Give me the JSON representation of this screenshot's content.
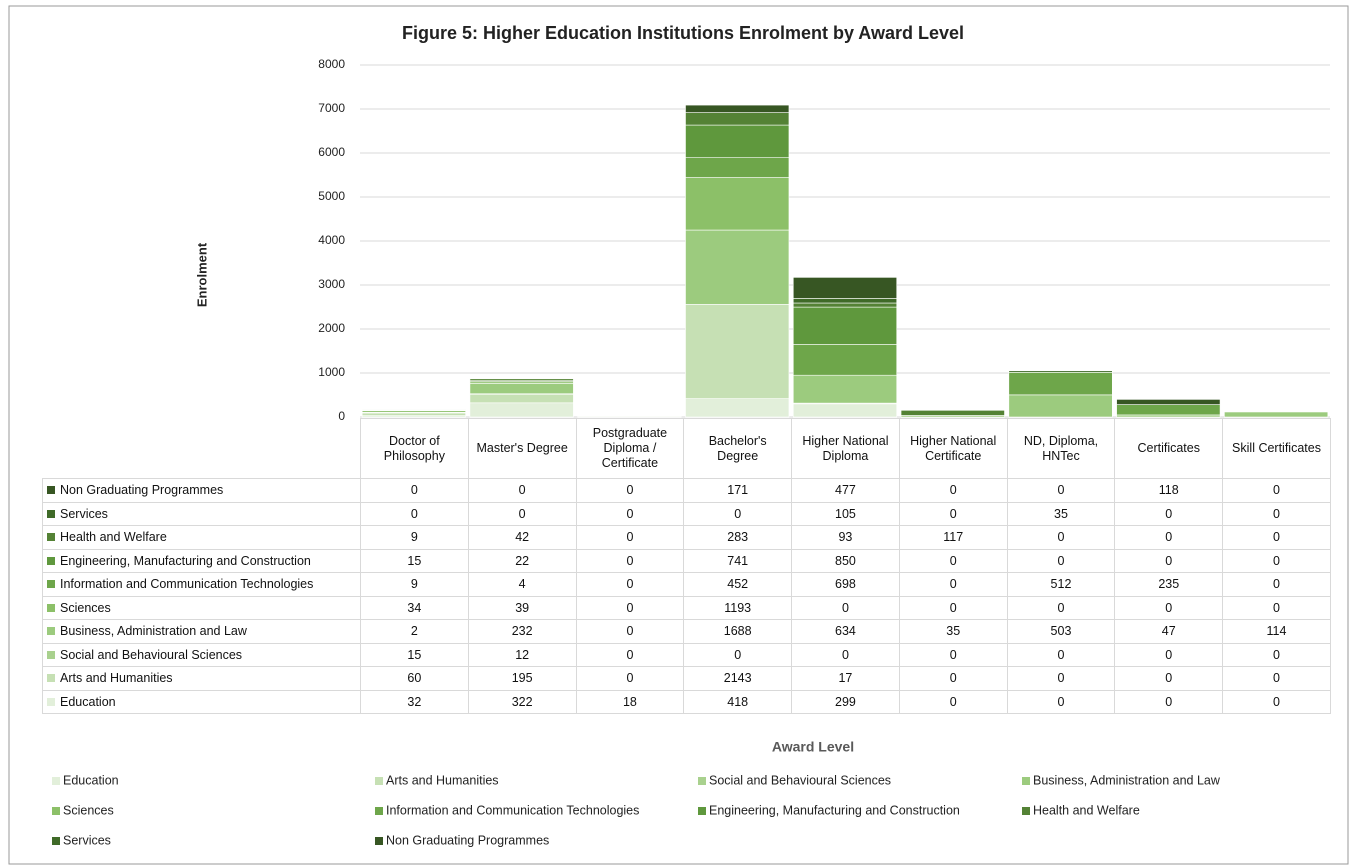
{
  "chart_data": {
    "type": "stacked_bar",
    "title": "Figure 5:  Higher Education Institutions Enrolment by Award Level",
    "ylabel": "Enrolment",
    "xlabel": "Award Level",
    "categories": [
      "Doctor of Philosophy",
      "Master's Degree",
      "Postgraduate Diploma / Certificate",
      "Bachelor's Degree",
      "Higher National Diploma",
      "Higher National Certificate",
      "ND, Diploma, HNTec",
      "Certificates",
      "Skill Certificates"
    ],
    "series": [
      {
        "name": "Education",
        "color": "#e2efda",
        "values": [
          32,
          322,
          18,
          418,
          299,
          0,
          0,
          0,
          0
        ]
      },
      {
        "name": "Arts and Humanities",
        "color": "#c6e0b4",
        "values": [
          60,
          195,
          0,
          2143,
          17,
          0,
          0,
          0,
          0
        ]
      },
      {
        "name": "Social and Behavioural Sciences",
        "color": "#a9d18e",
        "values": [
          15,
          12,
          0,
          0,
          0,
          0,
          0,
          0,
          0
        ]
      },
      {
        "name": "Business, Administration and Law",
        "color": "#9ccb7e",
        "values": [
          2,
          232,
          0,
          1688,
          634,
          35,
          503,
          47,
          114
        ]
      },
      {
        "name": "Sciences",
        "color": "#8cc068",
        "values": [
          34,
          39,
          0,
          1193,
          0,
          0,
          0,
          0,
          0
        ]
      },
      {
        "name": "Information and Communication Technologies",
        "color": "#6ea64a",
        "values": [
          9,
          4,
          0,
          452,
          698,
          0,
          512,
          235,
          0
        ]
      },
      {
        "name": "Engineering, Manufacturing and Construction",
        "color": "#5f983d",
        "values": [
          15,
          22,
          0,
          741,
          850,
          0,
          0,
          0,
          0
        ]
      },
      {
        "name": "Health and Welfare",
        "color": "#548235",
        "values": [
          9,
          42,
          0,
          283,
          93,
          117,
          0,
          0,
          0
        ]
      },
      {
        "name": "Services",
        "color": "#3f6a28",
        "values": [
          0,
          0,
          0,
          0,
          105,
          0,
          35,
          0,
          0
        ]
      },
      {
        "name": "Non Graduating Programmes",
        "color": "#375623",
        "values": [
          0,
          0,
          0,
          171,
          477,
          0,
          0,
          118,
          0
        ]
      }
    ],
    "ylim": [
      0,
      8000
    ],
    "yticks": [
      0,
      1000,
      2000,
      3000,
      4000,
      5000,
      6000,
      7000,
      8000
    ],
    "grid": true,
    "legend": "bottom"
  }
}
